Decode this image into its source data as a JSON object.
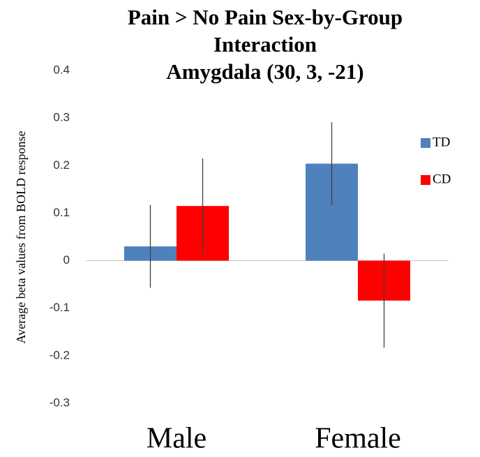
{
  "chart_data": {
    "type": "bar",
    "title": [
      "Pain > No Pain Sex-by-Group",
      "Interaction",
      "Amygdala (30, 3, -21)"
    ],
    "y_label": "Average beta values from BOLD response",
    "categories": [
      "Male",
      "Female"
    ],
    "series": [
      {
        "name": "TD",
        "color": "#4f81bd",
        "values": [
          0.03,
          0.204
        ],
        "errors": [
          0.087,
          0.087
        ]
      },
      {
        "name": "CD",
        "color": "#ff0000",
        "values": [
          0.115,
          -0.084
        ],
        "errors": [
          0.1,
          0.099
        ]
      }
    ],
    "ylim": [
      -0.3,
      0.4
    ],
    "yticks": [
      -0.3,
      -0.2,
      -0.1,
      0,
      0.1,
      0.2,
      0.3,
      0.4
    ],
    "legend": "right"
  }
}
